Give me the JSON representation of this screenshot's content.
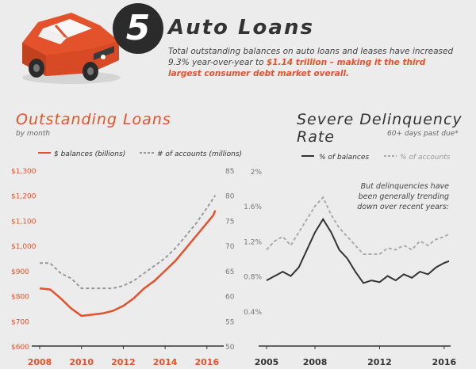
{
  "header": {
    "number": "5",
    "title": "Auto Loans",
    "summary_pre": "Total outstanding balances on auto loans and leases have increased 9.3% year-over-year to ",
    "summary_highlight": "$1.14 trillion – making it the third largest consumer debt market overall."
  },
  "colors": {
    "accent": "#e4522b",
    "dark": "#333333",
    "grey": "#999999",
    "background": "#ececec"
  },
  "left_panel": {
    "title": "Outstanding Loans",
    "subtitle": "by month"
  },
  "right_panel": {
    "title": "Severe Delinquency Rate",
    "subtitle": "60+ days past due*",
    "annotation": [
      "But delinquencies have",
      "been generally trending",
      "down over recent years:"
    ]
  },
  "chart_data": [
    {
      "type": "line",
      "legend": [
        "$ balances (billions)",
        "# of accounts (millions)"
      ],
      "xticks": [
        "2008",
        "2010",
        "2012",
        "2014",
        "2016"
      ],
      "xlim": [
        2008,
        2016.5
      ],
      "y_left_ticks": [
        "$1,300",
        "$1,200",
        "$1,100",
        "$1,000",
        "$900",
        "$800",
        "$700",
        "$600"
      ],
      "y_left_lim": [
        600,
        1300
      ],
      "y_right_ticks": [
        "85",
        "80",
        "75",
        "70",
        "65",
        "60",
        "55",
        "50"
      ],
      "y_right_lim": [
        50,
        85
      ],
      "series": [
        {
          "name": "$ balances (billions)",
          "axis": "left",
          "color": "#e4522b",
          "style": "solid",
          "x": [
            2008,
            2008.5,
            2009,
            2009.5,
            2010,
            2010.5,
            2011,
            2011.5,
            2012,
            2012.5,
            2013,
            2013.5,
            2014,
            2014.5,
            2015,
            2015.5,
            2016,
            2016.3,
            2016.4
          ],
          "y": [
            830,
            825,
            790,
            750,
            720,
            725,
            730,
            740,
            760,
            790,
            830,
            860,
            900,
            940,
            990,
            1040,
            1090,
            1120,
            1140
          ]
        },
        {
          "name": "# of accounts (millions)",
          "axis": "right",
          "color": "#999999",
          "style": "dashed",
          "x": [
            2008,
            2008.5,
            2009,
            2009.5,
            2010,
            2010.5,
            2011,
            2011.5,
            2012,
            2012.5,
            2013,
            2013.5,
            2014,
            2014.5,
            2015,
            2015.5,
            2016,
            2016.4
          ],
          "y": [
            66.5,
            66.5,
            64.5,
            63.5,
            61.5,
            61.5,
            61.5,
            61.5,
            62,
            63,
            64.5,
            66,
            67.5,
            69.5,
            72,
            74.5,
            77.5,
            80
          ]
        }
      ]
    },
    {
      "type": "line",
      "legend": [
        "% of balances",
        "% of accounts"
      ],
      "xticks": [
        "2005",
        "2008",
        "2012",
        "2016"
      ],
      "xlim": [
        2005,
        2016.4
      ],
      "yticks": [
        "2%",
        "1.6%",
        "1.2%",
        "0.8%",
        "0.4%"
      ],
      "ylim": [
        0,
        2
      ],
      "series": [
        {
          "name": "% of balances",
          "color": "#333333",
          "style": "solid",
          "x": [
            2005,
            2005.5,
            2006,
            2006.5,
            2007,
            2007.5,
            2008,
            2008.5,
            2009,
            2009.5,
            2010,
            2010.5,
            2011,
            2011.5,
            2012,
            2012.5,
            2013,
            2013.5,
            2014,
            2014.5,
            2015,
            2015.5,
            2016,
            2016.3
          ],
          "y": [
            0.75,
            0.8,
            0.85,
            0.8,
            0.9,
            1.1,
            1.3,
            1.45,
            1.3,
            1.1,
            1.0,
            0.85,
            0.72,
            0.75,
            0.73,
            0.8,
            0.75,
            0.82,
            0.78,
            0.85,
            0.82,
            0.9,
            0.95,
            0.97
          ]
        },
        {
          "name": "% of accounts",
          "color": "#aaaaaa",
          "style": "dashed",
          "x": [
            2005,
            2005.5,
            2006,
            2006.5,
            2007,
            2007.5,
            2008,
            2008.5,
            2009,
            2009.5,
            2010,
            2010.5,
            2011,
            2011.5,
            2012,
            2012.5,
            2013,
            2013.5,
            2014,
            2014.5,
            2015,
            2015.5,
            2016,
            2016.3
          ],
          "y": [
            1.1,
            1.2,
            1.25,
            1.15,
            1.3,
            1.45,
            1.6,
            1.7,
            1.5,
            1.35,
            1.25,
            1.15,
            1.05,
            1.05,
            1.05,
            1.12,
            1.1,
            1.15,
            1.1,
            1.2,
            1.15,
            1.22,
            1.25,
            1.28
          ]
        }
      ]
    }
  ]
}
